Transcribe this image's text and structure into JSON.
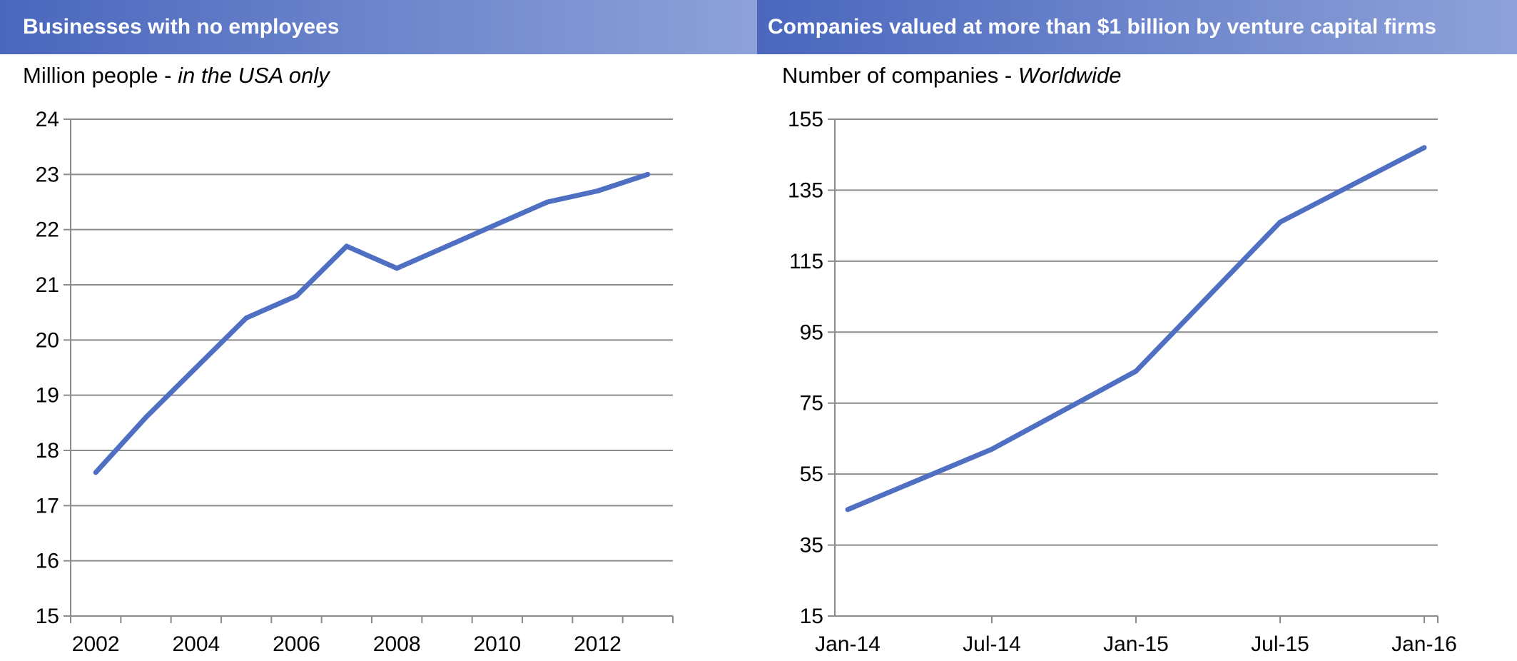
{
  "colors": {
    "header_gradient_start": "#4a67bd",
    "header_gradient_end": "#8ea2d9",
    "series_line": "#4e6fc2",
    "gridline": "#8c8c8c",
    "axis": "#8c8c8c"
  },
  "chart_data": [
    {
      "type": "line",
      "title": "Businesses with no employees",
      "subtitle": "Million people",
      "subtitle_emphasis": "in the USA only",
      "xlabel": "",
      "ylabel": "",
      "x": [
        2002,
        2003,
        2004,
        2005,
        2006,
        2007,
        2008,
        2009,
        2010,
        2011,
        2012,
        2013
      ],
      "x_tick_labels": [
        "2002",
        "2004",
        "2006",
        "2008",
        "2010",
        "2012"
      ],
      "xlim": [
        2001.5,
        2013.5
      ],
      "ylim": [
        15,
        24
      ],
      "y_ticks": [
        15,
        16,
        17,
        18,
        19,
        20,
        21,
        22,
        23,
        24
      ],
      "grid": true,
      "series": [
        {
          "values": [
            17.6,
            18.6,
            19.5,
            20.4,
            20.8,
            21.7,
            21.3,
            21.7,
            22.1,
            22.5,
            22.7,
            23.0
          ]
        }
      ]
    },
    {
      "type": "line",
      "title": "Companies valued at more than $1 billion by venture capital firms",
      "subtitle": "Number of companies",
      "subtitle_emphasis": "Worldwide",
      "xlabel": "",
      "ylabel": "",
      "x": [
        "2014-01",
        "2014-07",
        "2015-01",
        "2015-07",
        "2016-01"
      ],
      "x_tick_labels": [
        "Jan-14",
        "Jul-14",
        "Jan-15",
        "Jul-15",
        "Jan-16"
      ],
      "ylim": [
        15,
        155
      ],
      "y_ticks": [
        15,
        35,
        55,
        75,
        95,
        115,
        135,
        155
      ],
      "grid": true,
      "series": [
        {
          "values": [
            45,
            62,
            84,
            126,
            147
          ]
        }
      ]
    }
  ]
}
